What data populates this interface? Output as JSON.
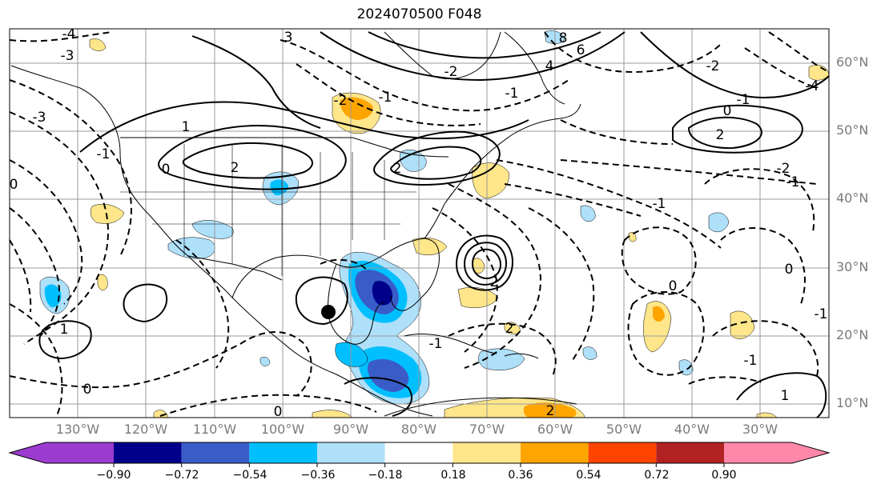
{
  "title": "2024070500 F048",
  "lat_labels": [
    "60°N",
    "50°N",
    "40°N",
    "30°N",
    "20°N",
    "10°N"
  ],
  "lon_labels": [
    "130°W",
    "120°W",
    "110°W",
    "100°W",
    "90°W",
    "80°W",
    "70°W",
    "60°W",
    "50°W",
    "40°W",
    "30°W"
  ],
  "contour_labels": [
    "2",
    "3",
    "4",
    "8",
    "6",
    "-4",
    "-3",
    "-2",
    "-1",
    "-2",
    "-1",
    "2",
    "0",
    "1",
    "-2",
    "-1",
    "-2",
    "2",
    "0",
    "-1",
    "0",
    "-1",
    "2",
    "-3",
    "-4",
    "0",
    "1",
    "0",
    "-1",
    "2",
    "2",
    "0",
    "0",
    "-1",
    "1",
    "-1",
    "-1"
  ],
  "colorbar": {
    "ticks": [
      "−0.90",
      "−0.72",
      "−0.54",
      "−0.36",
      "−0.18",
      "0.18",
      "0.36",
      "0.54",
      "0.72",
      "0.90"
    ],
    "colors": {
      "extend_low": "#9b3bd0",
      "bins": [
        "#9b3bd0",
        "#00008b",
        "#3a5cc8",
        "#00bfff",
        "#aee0fa",
        "#ffffff",
        "#ffe68a",
        "#ffa500",
        "#ff4400",
        "#b22222",
        "#ff88aa"
      ],
      "extend_high": "#ff88aa"
    }
  }
}
